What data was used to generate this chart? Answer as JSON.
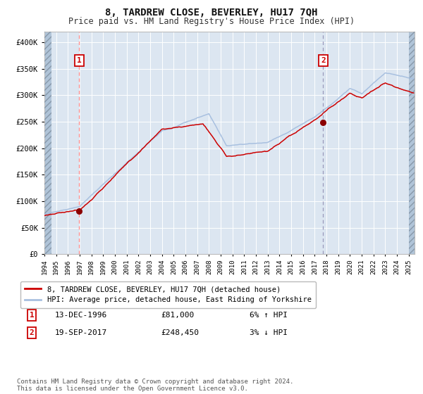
{
  "title": "8, TARDREW CLOSE, BEVERLEY, HU17 7QH",
  "subtitle": "Price paid vs. HM Land Registry's House Price Index (HPI)",
  "legend_line1": "8, TARDREW CLOSE, BEVERLEY, HU17 7QH (detached house)",
  "legend_line2": "HPI: Average price, detached house, East Riding of Yorkshire",
  "annotation1_date": "13-DEC-1996",
  "annotation1_price": "£81,000",
  "annotation1_hpi": "6% ↑ HPI",
  "annotation2_date": "19-SEP-2017",
  "annotation2_price": "£248,450",
  "annotation2_hpi": "3% ↓ HPI",
  "footer": "Contains HM Land Registry data © Crown copyright and database right 2024.\nThis data is licensed under the Open Government Licence v3.0.",
  "sale1_year": 1996.95,
  "sale1_price": 81000,
  "sale2_year": 2017.72,
  "sale2_price": 248450,
  "ylim": [
    0,
    420000
  ],
  "yticks": [
    0,
    50000,
    100000,
    150000,
    200000,
    250000,
    300000,
    350000,
    400000
  ],
  "xlim_left": 1994.0,
  "xlim_right": 2025.5,
  "bg_color": "#dce6f1",
  "hatch_color": "#b0c4d8",
  "grid_color": "#ffffff",
  "red_line_color": "#cc0000",
  "blue_line_color": "#a8c0e0",
  "dot_color": "#8b0000",
  "vline1_color": "#ff8888",
  "vline2_color": "#9999bb",
  "box_edge_color": "#cc0000",
  "title_fontsize": 10,
  "subtitle_fontsize": 8.5,
  "tick_fontsize": 6.5,
  "ytick_fontsize": 7.5,
  "legend_fontsize": 7.5,
  "ann_fontsize": 8,
  "footer_fontsize": 6.5
}
